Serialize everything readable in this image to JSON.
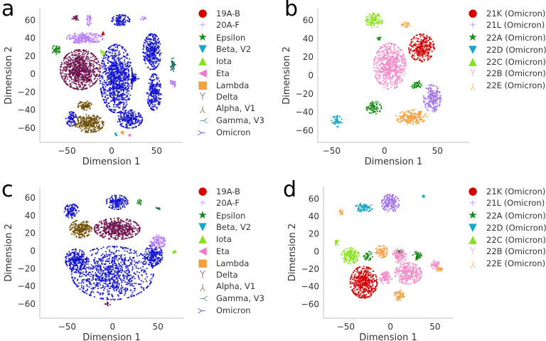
{
  "chart_data": [
    {
      "panel": "a",
      "type": "scatter",
      "xlabel": "Dimension 1",
      "ylabel": "Dimension 2",
      "xlim": [
        -80,
        79
      ],
      "ylim": [
        -76,
        73
      ],
      "xticks": [
        -50,
        0,
        50
      ],
      "yticks": [
        60,
        40,
        20,
        0,
        -20,
        -40,
        -60
      ],
      "grid": false,
      "legend": "right",
      "series": [
        {
          "name": "19A-B",
          "color": "#d40000",
          "marker": "circle"
        },
        {
          "name": "20A-F",
          "color": "#b57bff",
          "marker": "plus"
        },
        {
          "name": "Epsilon",
          "color": "#138a13",
          "marker": "star"
        },
        {
          "name": "Beta, V2",
          "color": "#17a8c4",
          "marker": "triangle-down"
        },
        {
          "name": "Iota",
          "color": "#86e01a",
          "marker": "triangle-up"
        },
        {
          "name": "Eta",
          "color": "#f07ac8",
          "marker": "triangle-left"
        },
        {
          "name": "Lambda",
          "color": "#f5a040",
          "marker": "square"
        },
        {
          "name": "Delta",
          "color": "#6b0f4a",
          "marker": "tri-down"
        },
        {
          "name": "Alpha, V1",
          "color": "#6b4a00",
          "marker": "tri-up"
        },
        {
          "name": "Gamma, V3",
          "color": "#1f6b6b",
          "marker": "tri-left"
        },
        {
          "name": "Omicron",
          "color": "#1010d0",
          "marker": "tri-right"
        }
      ],
      "clusters": [
        [
          "Omicron",
          5,
          -5,
          18,
          38
        ],
        [
          "Omicron",
          45,
          25,
          10,
          20
        ],
        [
          "Omicron",
          47,
          -20,
          8,
          20
        ],
        [
          "Omicron",
          20,
          -50,
          14,
          10
        ],
        [
          "Omicron",
          10,
          60,
          10,
          6
        ],
        [
          "Omicron",
          -45,
          -50,
          6,
          8
        ],
        [
          "Omicron",
          25,
          -5,
          5,
          5
        ],
        [
          "Delta",
          -35,
          5,
          22,
          22
        ],
        [
          "Delta",
          -40,
          62,
          4,
          3
        ],
        [
          "20A-F",
          -30,
          40,
          20,
          6
        ],
        [
          "20A-F",
          -25,
          60,
          3,
          6
        ],
        [
          "20A-F",
          68,
          -10,
          3,
          5
        ],
        [
          "20A-F",
          35,
          62,
          3,
          2
        ],
        [
          "Alpha, V1",
          -25,
          -55,
          16,
          10
        ],
        [
          "Alpha, V1",
          -30,
          -35,
          8,
          5
        ],
        [
          "Epsilon",
          -62,
          27,
          5,
          5
        ],
        [
          "Gamma, V3",
          68,
          10,
          3,
          8
        ],
        [
          "Iota",
          -10,
          25,
          3,
          4
        ],
        [
          "19A-B",
          -10,
          45,
          1.5,
          2
        ],
        [
          "Lambda",
          12,
          -65,
          1.5,
          1.5
        ],
        [
          "Eta",
          20,
          -68,
          1.5,
          1
        ],
        [
          "Beta, V2",
          5,
          -67,
          1,
          1.5
        ]
      ]
    },
    {
      "panel": "b",
      "type": "scatter",
      "xlabel": "Dimension 1",
      "ylabel": "Dimension 2",
      "xlim": [
        -63,
        80
      ],
      "ylim": [
        -73,
        73
      ],
      "xticks": [
        -50,
        0,
        50
      ],
      "yticks": [
        60,
        40,
        20,
        0,
        -20,
        -40,
        -60
      ],
      "grid": false,
      "legend": "right",
      "series": [
        {
          "name": "21K (Omicron)",
          "color": "#d40000",
          "marker": "circle"
        },
        {
          "name": "21L (Omicron)",
          "color": "#a070f0",
          "marker": "plus"
        },
        {
          "name": "22A (Omicron)",
          "color": "#138a13",
          "marker": "star"
        },
        {
          "name": "22D (Omicron)",
          "color": "#17a8c4",
          "marker": "triangle-down"
        },
        {
          "name": "22C (Omicron)",
          "color": "#86e01a",
          "marker": "triangle-up"
        },
        {
          "name": "22B (Omicron)",
          "color": "#f58ac8",
          "marker": "tri-down"
        },
        {
          "name": "22E (Omicron)",
          "color": "#f5a040",
          "marker": "tri-up"
        }
      ],
      "clusters": [
        [
          "22C (Omicron)",
          -10,
          60,
          8,
          8
        ],
        [
          "21K (Omicron)",
          35,
          30,
          12,
          15
        ],
        [
          "22B (Omicron)",
          5,
          10,
          15,
          25
        ],
        [
          "21L (Omicron)",
          45,
          -25,
          8,
          15
        ],
        [
          "22D (Omicron)",
          -45,
          -50,
          5,
          6
        ],
        [
          "22A (Omicron)",
          -10,
          -35,
          7,
          7
        ],
        [
          "22A (Omicron)",
          30,
          -10,
          5,
          5
        ],
        [
          "22E (Omicron)",
          25,
          -45,
          15,
          8
        ],
        [
          "22E (Omicron)",
          20,
          55,
          4,
          3
        ],
        [
          "22A (Omicron)",
          -5,
          40,
          2,
          2
        ]
      ]
    },
    {
      "panel": "c",
      "type": "scatter",
      "xlabel": "Dimension 1",
      "ylabel": "Dimension 2",
      "xlim": [
        -80,
        78
      ],
      "ylim": [
        -76,
        72
      ],
      "xticks": [
        -50,
        0,
        50
      ],
      "yticks": [
        60,
        40,
        20,
        0,
        -20,
        -40,
        -60
      ],
      "grid": false,
      "legend": "right",
      "series": [
        {
          "name": "19A-B",
          "color": "#d40000",
          "marker": "circle"
        },
        {
          "name": "20A-F",
          "color": "#b57bff",
          "marker": "plus"
        },
        {
          "name": "Epsilon",
          "color": "#138a13",
          "marker": "star"
        },
        {
          "name": "Beta, V2",
          "color": "#17a8c4",
          "marker": "triangle-down"
        },
        {
          "name": "Iota",
          "color": "#86e01a",
          "marker": "triangle-up"
        },
        {
          "name": "Eta",
          "color": "#f07ac8",
          "marker": "triangle-left"
        },
        {
          "name": "Lambda",
          "color": "#f5a040",
          "marker": "square"
        },
        {
          "name": "Delta",
          "color": "#6b0f4a",
          "marker": "tri-down"
        },
        {
          "name": "Alpha, V1",
          "color": "#6b4a00",
          "marker": "tri-up"
        },
        {
          "name": "Gamma, V3",
          "color": "#1f6b6b",
          "marker": "tri-left"
        },
        {
          "name": "Omicron",
          "color": "#1010d0",
          "marker": "tri-right"
        }
      ],
      "clusters": [
        [
          "Omicron",
          0,
          -25,
          45,
          30
        ],
        [
          "Omicron",
          -40,
          -10,
          12,
          12
        ],
        [
          "Omicron",
          5,
          55,
          12,
          8
        ],
        [
          "Omicron",
          -45,
          45,
          8,
          8
        ],
        [
          "Omicron",
          45,
          -5,
          10,
          12
        ],
        [
          "Alpha, V1",
          -35,
          25,
          12,
          10
        ],
        [
          "Delta",
          5,
          25,
          25,
          12
        ],
        [
          "20A-F",
          50,
          10,
          8,
          8
        ],
        [
          "Epsilon",
          30,
          55,
          3,
          3
        ],
        [
          "Gamma, V3",
          50,
          48,
          3,
          2
        ],
        [
          "Delta",
          -5,
          -60,
          3,
          2
        ],
        [
          "Iota",
          68,
          0,
          2,
          3
        ]
      ]
    },
    {
      "panel": "d",
      "type": "scatter",
      "xlabel": "Dimension 1",
      "ylabel": "Dimension 2",
      "xlim": [
        -75,
        70
      ],
      "ylim": [
        -76,
        74
      ],
      "xticks": [
        -50,
        0,
        50
      ],
      "yticks": [
        60,
        40,
        20,
        0,
        -20,
        -40,
        -60
      ],
      "grid": false,
      "legend": "right",
      "series": [
        {
          "name": "21K (Omicron)",
          "color": "#d40000",
          "marker": "circle"
        },
        {
          "name": "21L (Omicron)",
          "color": "#a070f0",
          "marker": "plus"
        },
        {
          "name": "22A (Omicron)",
          "color": "#138a13",
          "marker": "star"
        },
        {
          "name": "22D (Omicron)",
          "color": "#17a8c4",
          "marker": "triangle-down"
        },
        {
          "name": "22C (Omicron)",
          "color": "#86e01a",
          "marker": "triangle-up"
        },
        {
          "name": "22B (Omicron)",
          "color": "#f58ac8",
          "marker": "tri-down"
        },
        {
          "name": "22E (Omicron)",
          "color": "#f5a040",
          "marker": "tri-up"
        }
      ],
      "clusters": [
        [
          "22D (Omicron)",
          -30,
          50,
          10,
          5
        ],
        [
          "21L (Omicron)",
          0,
          55,
          10,
          10
        ],
        [
          "22C (Omicron)",
          -45,
          -5,
          10,
          9
        ],
        [
          "22C (Omicron)",
          -60,
          10,
          3,
          3
        ],
        [
          "21K (Omicron)",
          -30,
          -35,
          15,
          18
        ],
        [
          "22A (Omicron)",
          -25,
          -5,
          5,
          5
        ],
        [
          "22A (Omicron)",
          10,
          0,
          3,
          3
        ],
        [
          "22A (Omicron)",
          30,
          -5,
          5,
          5
        ],
        [
          "22B (Omicron)",
          20,
          -25,
          15,
          12
        ],
        [
          "22B (Omicron)",
          -5,
          -30,
          7,
          7
        ],
        [
          "22B (Omicron)",
          10,
          -5,
          8,
          8
        ],
        [
          "22B (Omicron)",
          50,
          -15,
          5,
          5
        ],
        [
          "22E (Omicron)",
          -10,
          0,
          7,
          7
        ],
        [
          "22E (Omicron)",
          10,
          -50,
          6,
          6
        ],
        [
          "22E (Omicron)",
          55,
          -20,
          4,
          3
        ],
        [
          "22E (Omicron)",
          -55,
          45,
          3,
          3
        ],
        [
          "22D (Omicron)",
          37,
          63,
          1.5,
          1
        ]
      ]
    }
  ]
}
